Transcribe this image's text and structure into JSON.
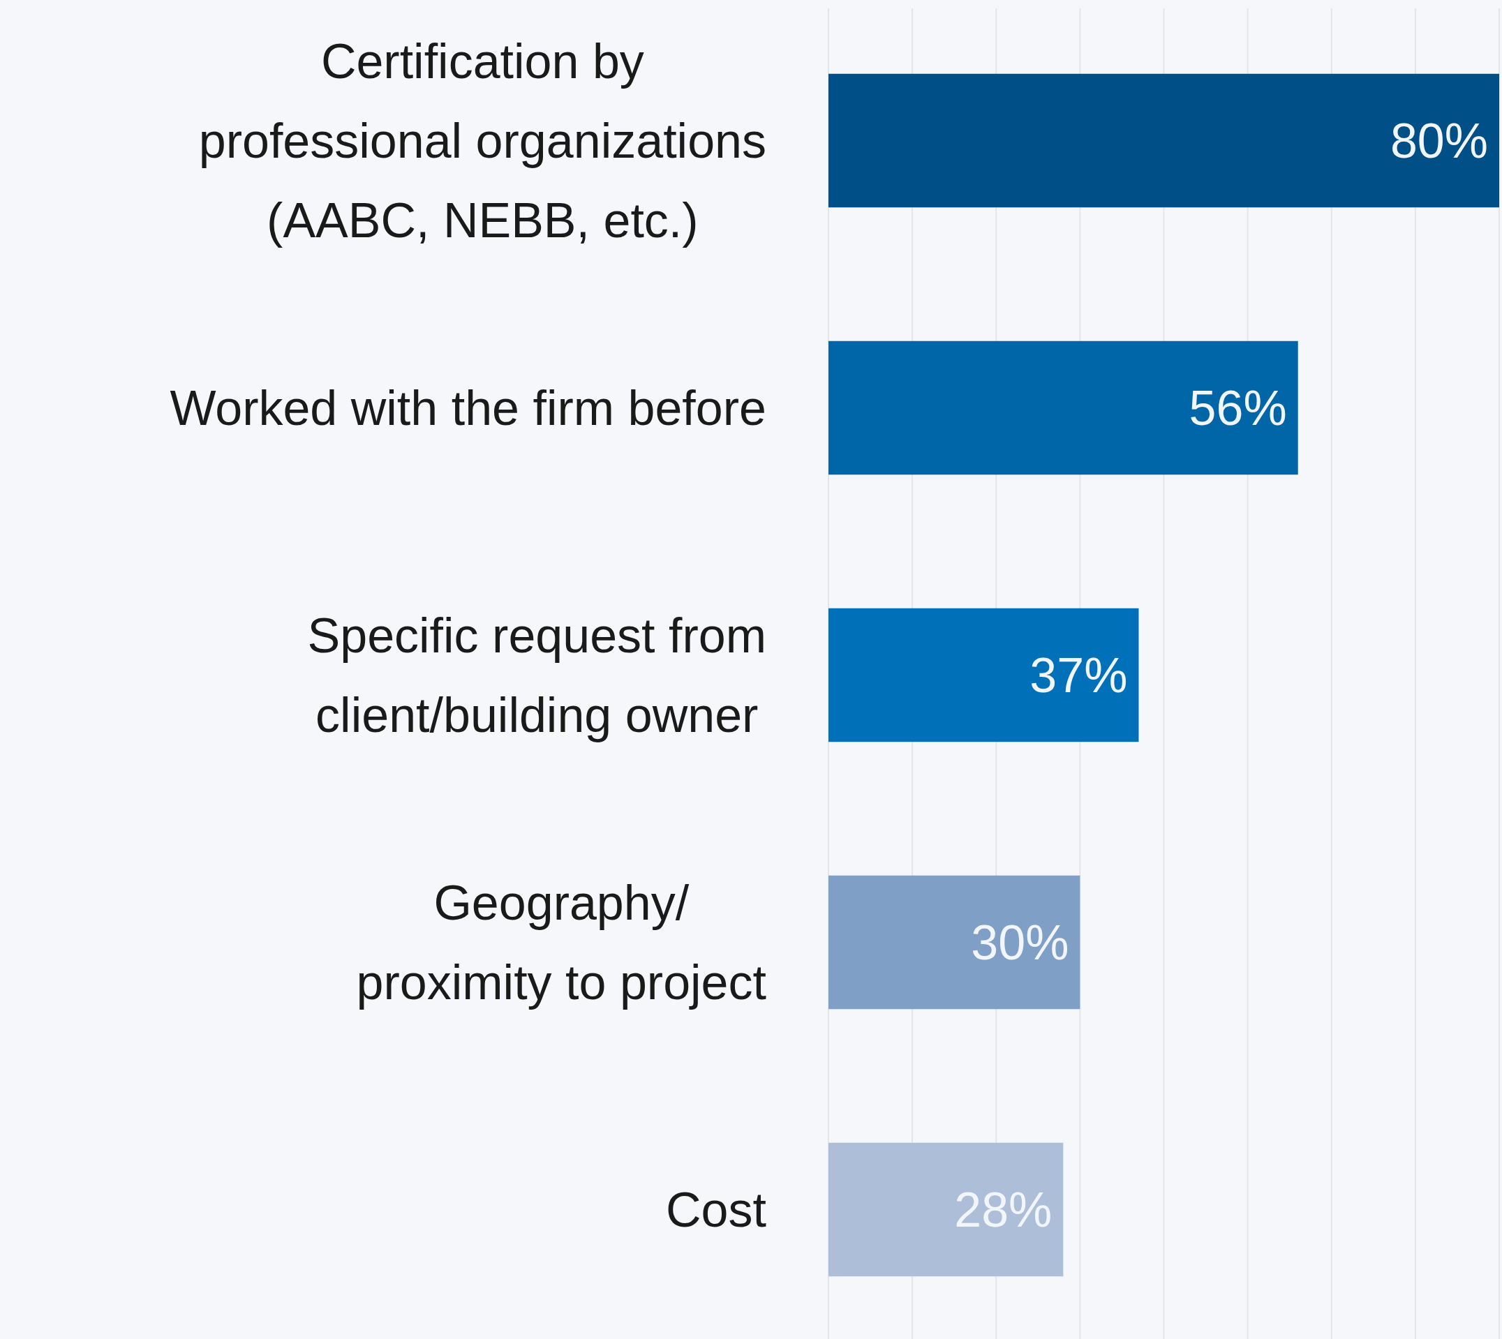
{
  "chart_data": {
    "type": "bar",
    "orientation": "horizontal",
    "categories": [
      "Certification by\nprofessional organizations\n(AABC, NEBB, etc.)",
      "Worked with the firm before",
      "Specific request from\nclient/building owner",
      "Geography/\nproximity to project",
      "Cost"
    ],
    "values": [
      80,
      56,
      37,
      30,
      28
    ],
    "colors": [
      "#004f86",
      "#0066a8",
      "#0070b8",
      "#809fc6",
      "#adbfd8"
    ],
    "xlim": [
      0,
      80
    ],
    "xticks": [
      {
        "value": 0,
        "label": null
      },
      {
        "value": 10,
        "label": null
      },
      {
        "value": 20,
        "label": null
      },
      {
        "value": 30,
        "label": null
      },
      {
        "value": 40,
        "label": null
      },
      {
        "value": 50,
        "label": null
      },
      {
        "value": 60,
        "label": null
      },
      {
        "value": 70,
        "label": null
      },
      {
        "value": 80,
        "label": null
      }
    ],
    "value_labels": [
      "80%",
      "56%",
      "37%",
      "30%",
      "28%"
    ],
    "grid": "x",
    "tick_labels": false
  }
}
